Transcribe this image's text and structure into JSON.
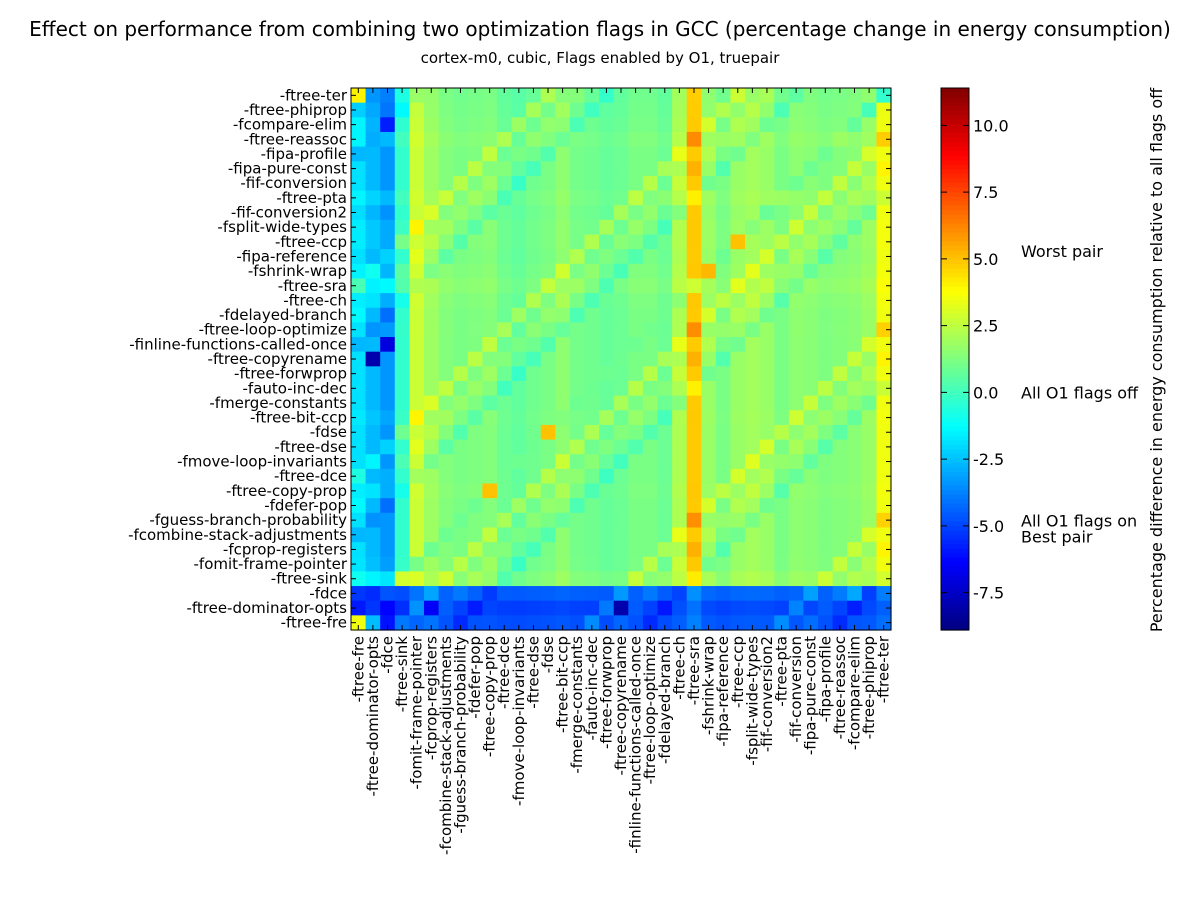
{
  "chart_data": {
    "type": "heatmap",
    "title": "Effect on performance from combining two optimization flags in GCC (percentage change in energy consumption)",
    "subtitle": "cortex-m0, cubic, Flags enabled by O1, truepair",
    "y_categories": [
      "-ftree-ter",
      "-ftree-phiprop",
      "-fcompare-elim",
      "-ftree-reassoc",
      "-fipa-profile",
      "-fipa-pure-const",
      "-fif-conversion",
      "-ftree-pta",
      "-fif-conversion2",
      "-fsplit-wide-types",
      "-ftree-ccp",
      "-fipa-reference",
      "-fshrink-wrap",
      "-ftree-sra",
      "-ftree-ch",
      "-fdelayed-branch",
      "-ftree-loop-optimize",
      "-finline-functions-called-once",
      "-ftree-copyrename",
      "-ftree-forwprop",
      "-fauto-inc-dec",
      "-fmerge-constants",
      "-ftree-bit-ccp",
      "-fdse",
      "-ftree-dse",
      "-fmove-loop-invariants",
      "-ftree-dce",
      "-ftree-copy-prop",
      "-fdefer-pop",
      "-fguess-branch-probability",
      "-fcombine-stack-adjustments",
      "-fcprop-registers",
      "-fomit-frame-pointer",
      "-ftree-sink",
      "-fdce",
      "-ftree-dominator-opts",
      "-ftree-fre"
    ],
    "x_categories": [
      "-ftree-fre",
      "-ftree-dominator-opts",
      "-fdce",
      "-ftree-sink",
      "-fomit-frame-pointer",
      "-fcprop-registers",
      "-fcombine-stack-adjustments",
      "-fguess-branch-probability",
      "-fdefer-pop",
      "-ftree-copy-prop",
      "-ftree-dce",
      "-fmove-loop-invariants",
      "-ftree-dse",
      "-fdse",
      "-ftree-bit-ccp",
      "-fmerge-constants",
      "-fauto-inc-dec",
      "-ftree-forwprop",
      "-ftree-copyrename",
      "-finline-functions-called-once",
      "-ftree-loop-optimize",
      "-fdelayed-branch",
      "-ftree-ch",
      "-ftree-sra",
      "-fshrink-wrap",
      "-fipa-reference",
      "-ftree-ccp",
      "-fsplit-wide-types",
      "-fif-conversion2",
      "-ftree-pta",
      "-fif-conversion",
      "-fipa-pure-const",
      "-fipa-profile",
      "-ftree-reassoc",
      "-fcompare-elim",
      "-ftree-phiprop",
      "-ftree-ter"
    ],
    "color_scale": {
      "colormap": "jet",
      "min": -8.9,
      "max": 11.4,
      "ticks": [
        10.0,
        7.5,
        5.0,
        2.5,
        0.0,
        -2.5,
        -5.0,
        -7.5
      ],
      "tick_labels": [
        "10.0",
        "7.5",
        "5.0",
        "2.5",
        "0.0",
        "-2.5",
        "-5.0",
        "-7.5"
      ],
      "label": "Percentage difference in energy consumption relative to all flags off",
      "annotations": [
        {
          "label": "Worst pair",
          "value": 5.3
        },
        {
          "label": "All O1 flags off",
          "value": 0.0
        },
        {
          "label": "All O1 flags on",
          "value": -4.8
        },
        {
          "label": "Best pair",
          "value": -5.4
        }
      ]
    },
    "row_base": [
      -0.3,
      0.1,
      0.7,
      1.8,
      0.9,
      0.9,
      0.9,
      1.8,
      0.8,
      1.4,
      1.4,
      0.9,
      1.7,
      2.8,
      1.5,
      0.9,
      1.0,
      0.9,
      0.9,
      0.9,
      0.9,
      0.9,
      1.3,
      0.9,
      0.9,
      0.9,
      0.9,
      1.5,
      0.9,
      0.9,
      0.9,
      0.9,
      1.1,
      2.9,
      -4.7,
      -5.3,
      -5.0
    ],
    "col_base": [
      -2.3,
      -3.2,
      -4.1,
      -0.6,
      2.6,
      1.7,
      1.2,
      1.0,
      1.1,
      1.2,
      0.7,
      0.5,
      0.8,
      1.0,
      1.4,
      0.9,
      0.8,
      0.6,
      0.7,
      1.0,
      1.0,
      0.7,
      2.0,
      4.8,
      1.6,
      1.0,
      1.6,
      1.8,
      1.6,
      1.0,
      1.4,
      1.3,
      1.1,
      1.2,
      1.3,
      1.6,
      3.4
    ],
    "col_gain": [
      0.45,
      0.6,
      0.8,
      0.35,
      0.15,
      0.15,
      0.15,
      0.15,
      0.15,
      0.15,
      0.15,
      0.15,
      0.15,
      0.15,
      0.15,
      0.15,
      0.15,
      0.15,
      0.15,
      0.15,
      0.15,
      0.15,
      0.15,
      0.05,
      0.15,
      0.15,
      0.15,
      0.15,
      0.15,
      0.15,
      0.15,
      0.15,
      0.15,
      0.15,
      0.15,
      0.15,
      0.1
    ],
    "overrides": [
      {
        "row": 0,
        "col": 0,
        "value": 4.0
      },
      {
        "row": 1,
        "col": 1,
        "value": -3.0
      },
      {
        "row": 2,
        "col": 2,
        "value": -5.8
      },
      {
        "row": 10,
        "col": 26,
        "value": 5.0
      },
      {
        "row": 12,
        "col": 24,
        "value": 5.2
      },
      {
        "row": 17,
        "col": 2,
        "value": -7.0
      },
      {
        "row": 18,
        "col": 1,
        "value": -8.0
      },
      {
        "row": 23,
        "col": 13,
        "value": 5.0
      },
      {
        "row": 27,
        "col": 9,
        "value": 5.0
      },
      {
        "row": 34,
        "col": 34,
        "value": -3.0
      },
      {
        "row": 35,
        "col": 18,
        "value": -8.0
      },
      {
        "row": 35,
        "col": 5,
        "value": -6.5
      },
      {
        "row": 36,
        "col": 1,
        "value": -2.6
      },
      {
        "row": 36,
        "col": 0,
        "value": 3.5
      }
    ]
  }
}
